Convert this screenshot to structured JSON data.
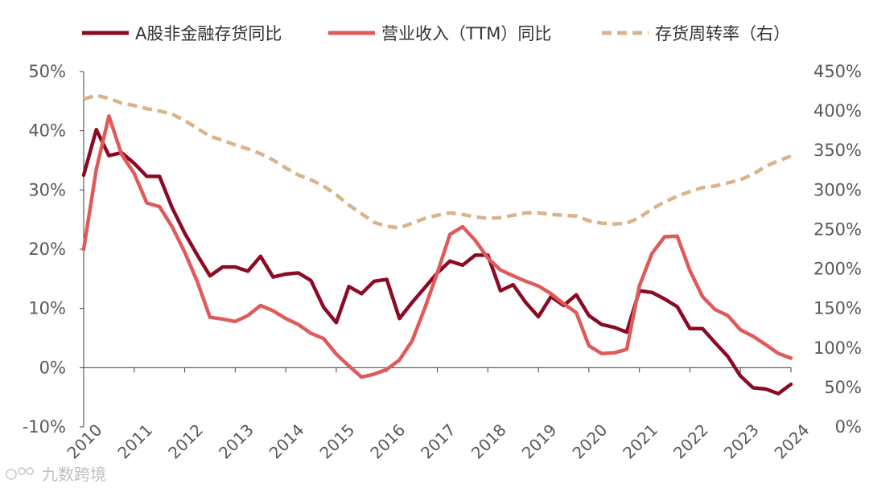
{
  "chart_data": {
    "type": "line",
    "title": "",
    "xlabel": "",
    "ylabel_left": "",
    "ylabel_right": "",
    "x_start": 2010.0,
    "x_step": 0.25,
    "x_ticks": [
      "2010",
      "2011",
      "2012",
      "2013",
      "2014",
      "2015",
      "2016",
      "2017",
      "2018",
      "2019",
      "2020",
      "2021",
      "2022",
      "2023",
      "2024"
    ],
    "y_left": {
      "min": -10,
      "max": 50,
      "step": 10,
      "ticks": [
        "-10%",
        "0%",
        "10%",
        "20%",
        "30%",
        "40%",
        "50%"
      ]
    },
    "y_right": {
      "min": 0,
      "max": 450,
      "step": 50,
      "ticks": [
        "0%",
        "50%",
        "100%",
        "150%",
        "200%",
        "250%",
        "300%",
        "350%",
        "400%",
        "450%"
      ]
    },
    "grid": false,
    "legend_position": "top",
    "series": [
      {
        "name": "A股非金融存货同比",
        "axis": "left",
        "color": "#8b0a24",
        "style": "solid",
        "values": [
          32.5,
          40.2,
          35.8,
          36.3,
          34.5,
          32.3,
          32.3,
          27,
          22.7,
          19,
          15.5,
          17,
          17,
          16.3,
          18.8,
          15.3,
          15.8,
          16,
          14.7,
          10.2,
          7.6,
          13.7,
          12.5,
          14.6,
          14.9,
          8.3,
          11,
          13.5,
          16,
          18,
          17.3,
          19,
          19,
          13,
          14,
          11,
          8.6,
          12,
          10.5,
          12.3,
          8.8,
          7.3,
          6.8,
          6,
          13,
          12.7,
          11.6,
          10.3,
          6.6,
          6.6,
          4.2,
          1.9,
          -1.4,
          -3.4,
          -3.6,
          -4.4,
          -2.8
        ]
      },
      {
        "name": "营业收入（TTM）同比",
        "axis": "left",
        "color": "#e05a5a",
        "style": "solid",
        "values": [
          20,
          33.5,
          42.5,
          36,
          32.8,
          27.8,
          27.2,
          23.8,
          19.5,
          14.5,
          8.5,
          8.2,
          7.8,
          8.8,
          10.5,
          9.6,
          8.3,
          7.3,
          5.8,
          4.9,
          2.3,
          0.3,
          -1.6,
          -1.1,
          -0.3,
          1.3,
          4.5,
          10,
          16,
          22.5,
          23.8,
          21.5,
          18.5,
          16.5,
          15.5,
          14.6,
          13.8,
          12.5,
          10.8,
          9.3,
          3.7,
          2.4,
          2.5,
          3.1,
          13.8,
          19.3,
          22.1,
          22.2,
          16.4,
          12,
          9.8,
          8.8,
          6.4,
          5.3,
          3.9,
          2.4,
          1.6
        ]
      },
      {
        "name": "存货周转率（右）",
        "axis": "right",
        "color": "#d9b48a",
        "style": "dashed",
        "values": [
          415,
          420,
          416,
          410,
          407,
          403,
          400,
          396,
          388,
          378,
          368,
          363,
          357,
          352,
          346,
          338,
          328,
          319,
          313,
          305,
          294,
          281,
          270,
          259,
          254,
          252,
          258,
          264,
          268,
          271,
          269,
          266,
          264,
          265,
          268,
          271,
          271,
          269,
          268,
          267,
          261,
          258,
          257,
          258,
          265,
          276,
          285,
          292,
          298,
          303,
          305,
          309,
          313,
          320,
          330,
          337,
          343
        ]
      }
    ]
  },
  "watermark": "九数跨境"
}
